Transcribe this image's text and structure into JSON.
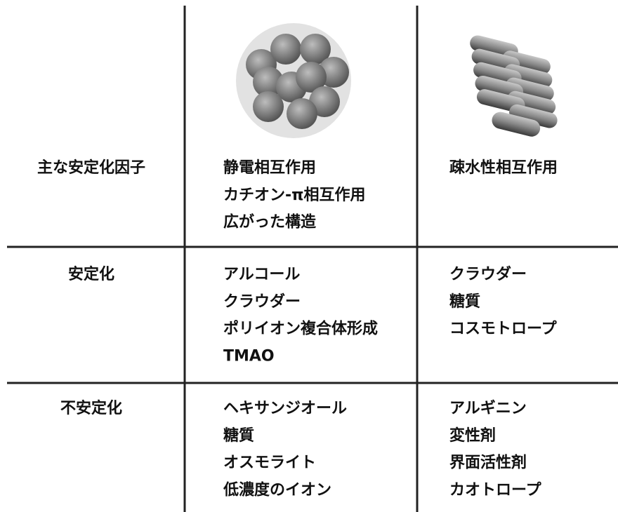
{
  "table": {
    "rows": [
      {
        "label": "主な安定化因子",
        "cells": [
          [
            "静電相互作用",
            "カチオン-π相互作用",
            "広がった構造"
          ],
          [
            "疎水性相互作用"
          ]
        ]
      },
      {
        "label": "安定化",
        "cells": [
          [
            "アルコール",
            "クラウダー",
            "ポリイオン複合体形成",
            "TMAO"
          ],
          [
            "クラウダー",
            "糖質",
            "コスモトロープ"
          ]
        ]
      },
      {
        "label": "不安定化",
        "cells": [
          [
            "ヘキサンジオール",
            "糖質",
            "オスモライト",
            "低濃度のイオン"
          ],
          [
            "アルギニン",
            "変性剤",
            "界面活性剤",
            "カオトロープ"
          ]
        ]
      }
    ]
  }
}
